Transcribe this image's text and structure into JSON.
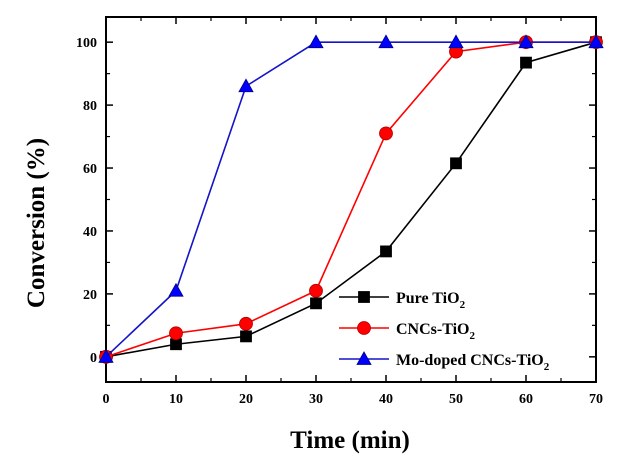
{
  "chart_data": {
    "type": "line",
    "title": "",
    "xlabel": "Time (min)",
    "ylabel": "Conversion (%)",
    "xlim": [
      0,
      70
    ],
    "ylim": [
      -8,
      108
    ],
    "xticks": [
      0,
      10,
      20,
      30,
      40,
      50,
      60,
      70
    ],
    "yticks": [
      0,
      20,
      40,
      60,
      80,
      100
    ],
    "grid": false,
    "legend_position": "bottom-right",
    "x": [
      0,
      10,
      20,
      30,
      40,
      50,
      60,
      70
    ],
    "series": [
      {
        "name": "Pure TiO2",
        "label_parts": [
          "Pure TiO",
          "2"
        ],
        "marker": "square",
        "color": "#000000",
        "marker_color": "#000000",
        "values": [
          0,
          4,
          6.5,
          17,
          33.5,
          61.5,
          93.5,
          100
        ]
      },
      {
        "name": "CNCs-TiO2",
        "label_parts": [
          "CNCs-TiO",
          "2"
        ],
        "marker": "circle",
        "color": "#ff0000",
        "marker_color": "#ff0000",
        "values": [
          0,
          7.5,
          10.5,
          21,
          71,
          97,
          100,
          100
        ]
      },
      {
        "name": "Mo-doped CNCs-TiO2",
        "label_parts": [
          "Mo-doped CNCs-TiO",
          "2"
        ],
        "marker": "triangle",
        "color": "#1414c8",
        "marker_color": "#0000ff",
        "values": [
          0,
          21,
          86,
          100,
          100,
          100,
          100,
          100
        ]
      }
    ]
  }
}
